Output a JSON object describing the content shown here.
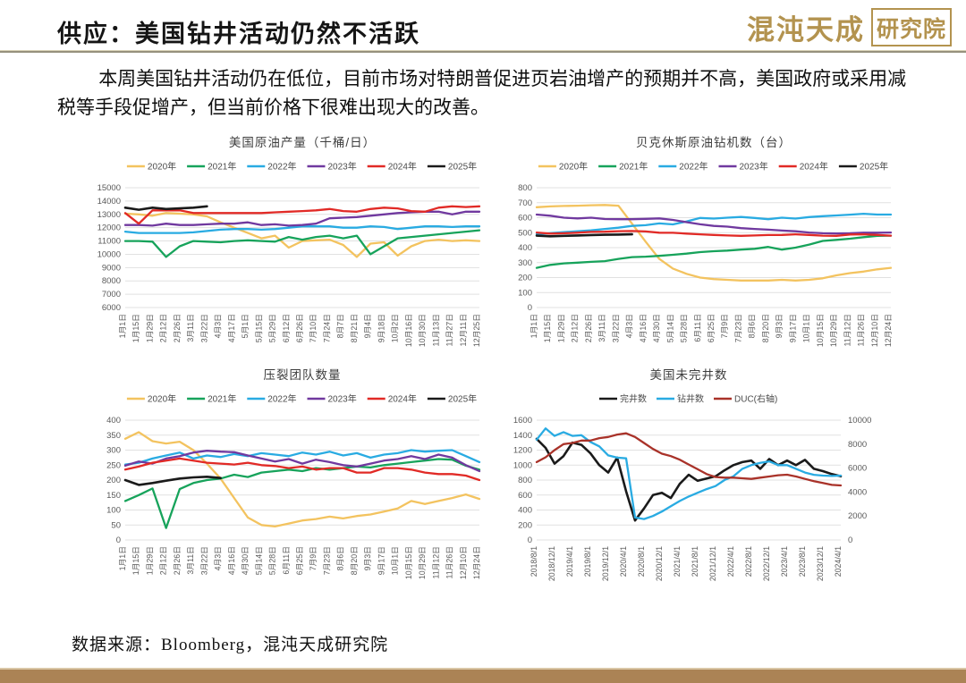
{
  "page": {
    "title": "供应：美国钻井活动仍然不活跃",
    "logo": {
      "name": "混沌天成",
      "suffix": "研究院"
    },
    "paragraph": "本周美国钻井活动仍在低位，目前市场对特朗普促进页岩油增产的预期并不高，美国政府或采用减税等手段促增产，但当前价格下很难出现大的改善。",
    "footer": "数据来源：Bloomberg，混沌天成研究院",
    "accent_color": "#AB8355"
  },
  "chart_data": [
    {
      "type": "line",
      "title": "美国原油产量（千桶/日）",
      "legend_position": "top",
      "grid": "horizontal",
      "x_labels": [
        "1月1日",
        "1月15日",
        "1月29日",
        "2月12日",
        "2月26日",
        "3月11日",
        "3月22日",
        "4月3日",
        "4月17日",
        "5月1日",
        "5月15日",
        "5月29日",
        "6月12日",
        "6月26日",
        "7月10日",
        "7月24日",
        "8月7日",
        "8月21日",
        "9月4日",
        "9月18日",
        "10月2日",
        "10月16日",
        "10月30日",
        "11月13日",
        "11月27日",
        "12月11日",
        "12月25日"
      ],
      "y_axis": {
        "min": 6000,
        "max": 15000,
        "step": 1000
      },
      "series": [
        {
          "name": "2020年",
          "color": "#F3C35F",
          "values": [
            13050,
            13000,
            12900,
            13100,
            13050,
            13000,
            12850,
            12400,
            12000,
            11600,
            11200,
            11400,
            10500,
            11000,
            11050,
            11100,
            10700,
            9800,
            10800,
            10900,
            9900,
            10600,
            11000,
            11100,
            11000,
            11050,
            11000
          ]
        },
        {
          "name": "2021年",
          "color": "#17A35B",
          "values": [
            11000,
            11000,
            10950,
            9800,
            10600,
            11000,
            10950,
            10900,
            11000,
            11050,
            11000,
            10950,
            11300,
            11100,
            11300,
            11400,
            11200,
            11400,
            10000,
            10600,
            11200,
            11300,
            11400,
            11500,
            11600,
            11700,
            11800
          ]
        },
        {
          "name": "2022年",
          "color": "#29ABE2",
          "values": [
            11700,
            11600,
            11600,
            11600,
            11600,
            11650,
            11750,
            11850,
            11900,
            11900,
            11850,
            11900,
            12000,
            12100,
            12100,
            12100,
            12000,
            12000,
            12100,
            12050,
            11900,
            12000,
            12100,
            12100,
            12050,
            12100,
            12100
          ]
        },
        {
          "name": "2023年",
          "color": "#70399F",
          "values": [
            12200,
            12200,
            12150,
            12300,
            12200,
            12200,
            12250,
            12300,
            12300,
            12400,
            12200,
            12250,
            12150,
            12200,
            12300,
            12700,
            12750,
            12800,
            12900,
            13000,
            13100,
            13150,
            13200,
            13200,
            13000,
            13200,
            13200
          ]
        },
        {
          "name": "2024年",
          "color": "#E12A26",
          "values": [
            13100,
            12300,
            13300,
            13300,
            13300,
            13100,
            13100,
            13100,
            13100,
            13100,
            13100,
            13150,
            13200,
            13250,
            13300,
            13400,
            13250,
            13200,
            13400,
            13500,
            13450,
            13250,
            13200,
            13500,
            13600,
            13550,
            13600
          ]
        },
        {
          "name": "2025年",
          "color": "#1A1A1A",
          "values": [
            13500,
            13350,
            13500,
            13400,
            13450,
            13500,
            13600
          ]
        }
      ]
    },
    {
      "type": "line",
      "title": "贝克休斯原油钻机数（台）",
      "legend_position": "top",
      "grid": "horizontal",
      "x_labels": [
        "1月1日",
        "1月15日",
        "1月29日",
        "2月12日",
        "2月26日",
        "3月11日",
        "3月22日",
        "4月3日",
        "4月16日",
        "4月30日",
        "5月14日",
        "5月28日",
        "6月11日",
        "6月25日",
        "7月9日",
        "7月23日",
        "8月6日",
        "8月20日",
        "9月3日",
        "9月17日",
        "10月1日",
        "10月15日",
        "10月29日",
        "11月12日",
        "11月26日",
        "12月10日",
        "12月24日"
      ],
      "y_axis": {
        "min": 0,
        "max": 800,
        "step": 100
      },
      "series": [
        {
          "name": "2020年",
          "color": "#F3C35F",
          "values": [
            670,
            675,
            678,
            680,
            683,
            685,
            680,
            560,
            440,
            325,
            260,
            225,
            200,
            190,
            185,
            180,
            180,
            180,
            185,
            180,
            185,
            195,
            215,
            230,
            240,
            255,
            265
          ]
        },
        {
          "name": "2021年",
          "color": "#17A35B",
          "values": [
            265,
            285,
            295,
            300,
            305,
            310,
            325,
            337,
            340,
            345,
            352,
            360,
            370,
            376,
            380,
            387,
            392,
            405,
            387,
            400,
            420,
            445,
            452,
            460,
            470,
            478,
            480
          ]
        },
        {
          "name": "2022年",
          "color": "#29ABE2",
          "values": [
            490,
            497,
            503,
            510,
            515,
            525,
            533,
            545,
            550,
            562,
            555,
            575,
            598,
            594,
            600,
            605,
            598,
            590,
            600,
            594,
            604,
            610,
            615,
            620,
            626,
            621,
            621
          ]
        },
        {
          "name": "2023年",
          "color": "#70399F",
          "values": [
            621,
            613,
            600,
            595,
            600,
            591,
            590,
            590,
            592,
            595,
            585,
            570,
            556,
            545,
            540,
            530,
            525,
            520,
            514,
            509,
            501,
            496,
            495,
            496,
            500,
            500,
            501
          ]
        },
        {
          "name": "2024年",
          "color": "#E12A26",
          "values": [
            501,
            494,
            496,
            500,
            505,
            506,
            510,
            511,
            508,
            500,
            499,
            494,
            489,
            485,
            481,
            479,
            481,
            484,
            485,
            489,
            485,
            480,
            479,
            488,
            489,
            485,
            480
          ]
        },
        {
          "name": "2025年",
          "color": "#1A1A1A",
          "values": [
            480,
            476,
            479,
            481,
            484,
            486,
            487,
            489
          ]
        }
      ]
    },
    {
      "type": "line",
      "title": "压裂团队数量",
      "legend_position": "top",
      "grid": "horizontal",
      "x_labels": [
        "1月1日",
        "1月15日",
        "1月29日",
        "2月12日",
        "2月26日",
        "3月11日",
        "3月22日",
        "4月3日",
        "4月16日",
        "4月30日",
        "5月14日",
        "5月28日",
        "6月11日",
        "6月25日",
        "7月9日",
        "7月23日",
        "8月6日",
        "8月20日",
        "9月3日",
        "9月17日",
        "10月1日",
        "10月15日",
        "10月29日",
        "11月12日",
        "11月26日",
        "12月10日",
        "12月24日"
      ],
      "y_axis": {
        "min": 0,
        "max": 400,
        "step": 50
      },
      "series": [
        {
          "name": "2020年",
          "color": "#F3C35F",
          "values": [
            338,
            360,
            330,
            322,
            328,
            300,
            255,
            205,
            140,
            75,
            50,
            45,
            55,
            65,
            70,
            78,
            72,
            80,
            85,
            95,
            105,
            130,
            120,
            130,
            140,
            152,
            137
          ]
        },
        {
          "name": "2021年",
          "color": "#17A35B",
          "values": [
            130,
            150,
            172,
            40,
            170,
            190,
            200,
            205,
            218,
            210,
            225,
            230,
            235,
            230,
            240,
            235,
            240,
            245,
            242,
            250,
            255,
            260,
            265,
            270,
            268,
            248,
            235
          ]
        },
        {
          "name": "2022年",
          "color": "#29ABE2",
          "values": [
            252,
            258,
            272,
            282,
            292,
            272,
            282,
            277,
            287,
            280,
            290,
            285,
            280,
            292,
            285,
            295,
            282,
            290,
            275,
            285,
            290,
            300,
            295,
            298,
            300,
            280,
            260
          ]
        },
        {
          "name": "2023年",
          "color": "#70399F",
          "values": [
            248,
            262,
            255,
            272,
            280,
            292,
            298,
            295,
            293,
            282,
            272,
            262,
            270,
            255,
            268,
            260,
            250,
            245,
            255,
            265,
            270,
            280,
            270,
            285,
            275,
            250,
            230
          ]
        },
        {
          "name": "2024年",
          "color": "#E12A26",
          "values": [
            235,
            245,
            258,
            265,
            272,
            265,
            258,
            255,
            252,
            258,
            250,
            247,
            240,
            245,
            235,
            240,
            240,
            225,
            225,
            240,
            240,
            235,
            225,
            220,
            220,
            215,
            200
          ]
        },
        {
          "name": "2025年",
          "color": "#1A1A1A",
          "values": [
            200,
            184,
            190,
            198,
            205,
            209,
            211,
            207
          ]
        }
      ]
    },
    {
      "type": "line",
      "title": "美国未完井数",
      "legend_position": "top",
      "grid": "horizontal",
      "x_labels": [
        "2018/8/1",
        "2018/12/1",
        "2019/4/1",
        "2019/8/1",
        "2019/12/1",
        "2020/4/1",
        "2020/8/1",
        "2020/12/1",
        "2021/4/1",
        "2021/8/1",
        "2021/12/1",
        "2022/4/1",
        "2022/8/1",
        "2022/12/1",
        "2023/4/1",
        "2023/8/1",
        "2023/12/1",
        "2024/4/1"
      ],
      "y_axis": {
        "min": 0,
        "max": 1600,
        "step": 200
      },
      "y_axis_right": {
        "min": 0,
        "max": 10000,
        "step": 2000
      },
      "series": [
        {
          "name": "完井数",
          "color": "#1A1A1A",
          "span": "full",
          "values": [
            1350,
            1230,
            1020,
            1120,
            1300,
            1270,
            1160,
            1000,
            900,
            1100,
            650,
            260,
            420,
            600,
            630,
            560,
            750,
            870,
            790,
            820,
            850,
            930,
            1000,
            1040,
            1060,
            950,
            1080,
            1000,
            1060,
            1000,
            1070,
            950,
            920,
            880,
            850
          ]
        },
        {
          "name": "钻井数",
          "color": "#29ABE2",
          "span": "full",
          "values": [
            1340,
            1490,
            1390,
            1440,
            1390,
            1400,
            1310,
            1250,
            1130,
            1100,
            1090,
            300,
            280,
            320,
            380,
            450,
            520,
            580,
            630,
            680,
            720,
            800,
            850,
            950,
            1000,
            1030,
            1050,
            1000,
            1000,
            950,
            900,
            870,
            860,
            855,
            860
          ]
        },
        {
          "name": "DUC(右轴)",
          "color": "#A93229",
          "axis": "right",
          "span": "full",
          "values": [
            6500,
            6900,
            7500,
            8000,
            8100,
            8300,
            8300,
            8500,
            8600,
            8800,
            8900,
            8600,
            8100,
            7600,
            7200,
            7000,
            6700,
            6300,
            5900,
            5500,
            5250,
            5200,
            5200,
            5150,
            5100,
            5200,
            5300,
            5400,
            5450,
            5300,
            5100,
            4900,
            4750,
            4600,
            4550
          ]
        }
      ]
    }
  ]
}
